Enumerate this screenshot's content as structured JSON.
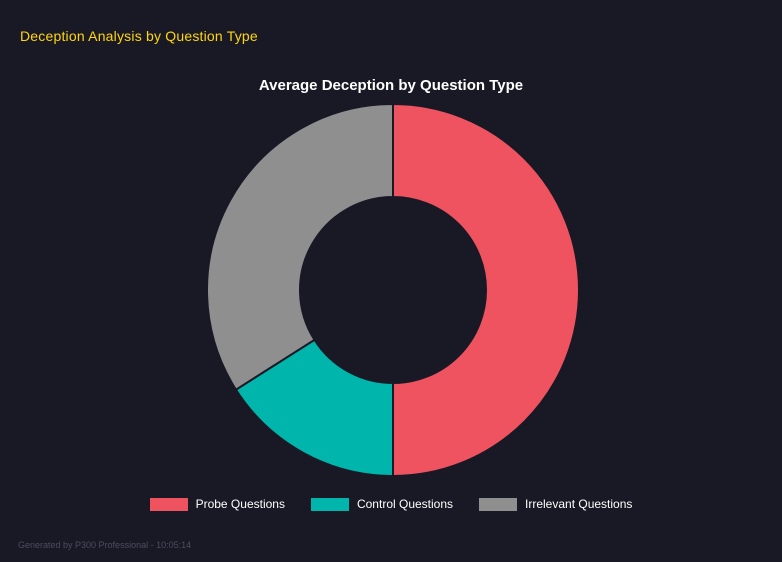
{
  "header": {
    "title": "Deception Analysis by Question Type"
  },
  "chart_data": {
    "type": "pie",
    "subtype": "doughnut",
    "title": "Average Deception by Question Type",
    "labels": [
      "Probe Questions",
      "Control Questions",
      "Irrelevant Questions"
    ],
    "values": [
      50,
      16,
      34
    ],
    "colors": [
      "#ef5360",
      "#00b5ac",
      "#8f8f8f"
    ],
    "background": "#191926",
    "legend_position": "bottom",
    "inner_radius_ratio": 0.5,
    "start_angle_deg": -90,
    "direction": "clockwise"
  },
  "footer": {
    "text": "Generated by P300 Professional - 10:05:14"
  }
}
